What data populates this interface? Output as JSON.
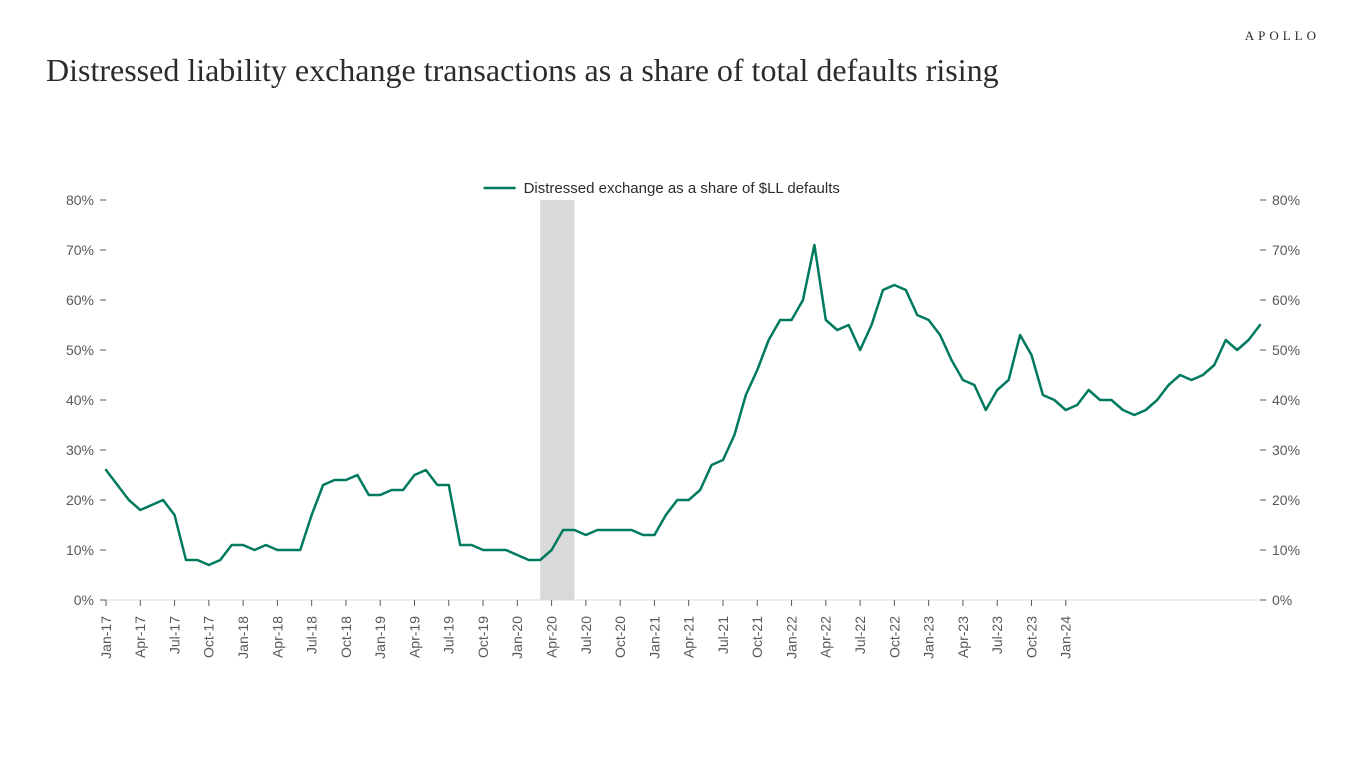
{
  "brand": "APOLLO",
  "title": "Distressed liability exchange transactions as a share of total defaults rising",
  "chart": {
    "type": "line",
    "legend_label": "Distressed exchange as a share of $LL defaults",
    "background_color": "#ffffff",
    "grid_color": "#d9d9d9",
    "axis_color": "#595959",
    "tick_font_size": 14,
    "legend_font_size": 15,
    "line_color": "#007a5e",
    "line_width": 2.5,
    "shaded_band": {
      "start_index": 38,
      "end_index": 41,
      "color": "#d9d9d9"
    },
    "ylim": [
      0,
      80
    ],
    "ytick_step": 10,
    "ytick_labels": [
      "0%",
      "10%",
      "20%",
      "30%",
      "40%",
      "50%",
      "60%",
      "70%",
      "80%"
    ],
    "x_major_labels": [
      "Jan-17",
      "Apr-17",
      "Jul-17",
      "Oct-17",
      "Jan-18",
      "Apr-18",
      "Jul-18",
      "Oct-18",
      "Jan-19",
      "Apr-19",
      "Jul-19",
      "Oct-19",
      "Jan-20",
      "Apr-20",
      "Jul-20",
      "Oct-20",
      "Jan-21",
      "Apr-21",
      "Jul-21",
      "Oct-21",
      "Jan-22",
      "Apr-22",
      "Jul-22",
      "Oct-22",
      "Jan-23",
      "Apr-23",
      "Jul-23",
      "Oct-23",
      "Jan-24"
    ],
    "x_major_step": 3,
    "values": [
      26,
      23,
      20,
      18,
      19,
      20,
      17,
      8,
      8,
      7,
      8,
      11,
      11,
      10,
      11,
      10,
      10,
      10,
      17,
      23,
      24,
      24,
      25,
      21,
      21,
      22,
      22,
      25,
      26,
      23,
      23,
      11,
      11,
      10,
      10,
      10,
      9,
      8,
      8,
      10,
      14,
      14,
      13,
      14,
      14,
      14,
      14,
      13,
      13,
      17,
      20,
      20,
      22,
      27,
      28,
      33,
      41,
      46,
      52,
      56,
      56,
      60,
      71,
      56,
      54,
      55,
      50,
      55,
      62,
      63,
      62,
      57,
      56,
      53,
      48,
      44,
      43,
      38,
      42,
      44,
      53,
      49,
      41,
      40,
      38,
      39,
      42,
      40,
      40,
      38,
      37,
      38,
      40,
      43,
      45,
      44,
      45,
      47,
      52,
      50,
      52,
      55
    ]
  }
}
